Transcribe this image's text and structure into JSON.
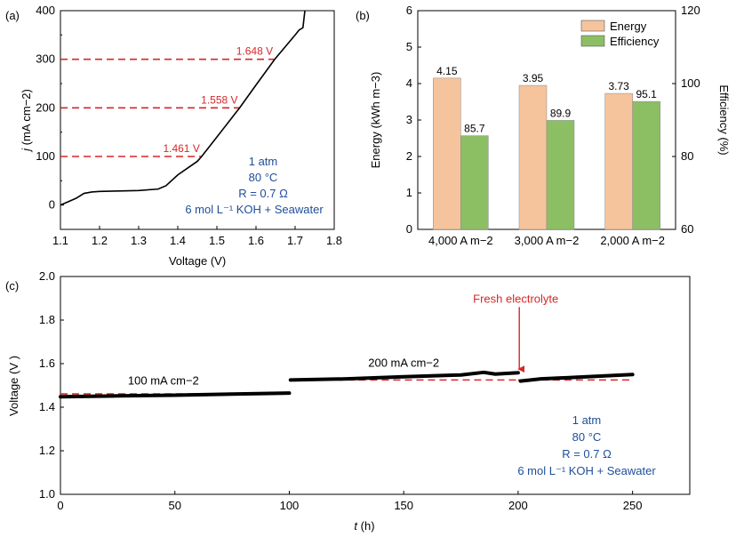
{
  "chart_data": [
    {
      "panel": "(a)",
      "type": "line",
      "xlabel": "Voltage (V)",
      "ylabel_main": "j",
      "ylabel_unit": "(mA cm−2)",
      "xlim": [
        1.1,
        1.8
      ],
      "ylim": [
        -50,
        400
      ],
      "xticks": [
        "1.1",
        "1.2",
        "1.3",
        "1.4",
        "1.5",
        "1.6",
        "1.7",
        "1.8"
      ],
      "yticks": [
        "0",
        "100",
        "200",
        "300",
        "400"
      ],
      "series": [
        {
          "color": "#000000",
          "x": [
            1.1,
            1.12,
            1.14,
            1.16,
            1.18,
            1.2,
            1.25,
            1.3,
            1.35,
            1.37,
            1.4,
            1.45,
            1.461,
            1.5,
            1.558,
            1.6,
            1.648,
            1.7,
            1.71,
            1.72,
            1.725
          ],
          "y": [
            0,
            7,
            14,
            24,
            27,
            28,
            29,
            30,
            33,
            40,
            62,
            90,
            100,
            140,
            200,
            247,
            300,
            350,
            360,
            365,
            400
          ]
        }
      ],
      "reference_lines": [
        {
          "y": 100,
          "x_end": 1.461,
          "label": "1.461 V"
        },
        {
          "y": 200,
          "x_end": 1.558,
          "label": "1.558 V"
        },
        {
          "y": 300,
          "x_end": 1.648,
          "label": "1.648 V"
        }
      ],
      "annotation": [
        "1 atm",
        "80 °C",
        "R = 0.7 Ω",
        "6 mol L⁻¹ KOH + Seawater"
      ]
    },
    {
      "panel": "(b)",
      "type": "bar",
      "categories": [
        "4,000 A m−2",
        "3,000 A m−2",
        "2,000 A m−2"
      ],
      "ylabel": "Energy (kWh m−3)",
      "y2label": "Efficiency (%)",
      "ylim": [
        0,
        6
      ],
      "y2lim": [
        60,
        120
      ],
      "yticks": [
        "0",
        "1",
        "2",
        "3",
        "4",
        "5",
        "6"
      ],
      "y2ticks": [
        "60",
        "80",
        "100",
        "120"
      ],
      "legend_position": "top-right",
      "series": [
        {
          "name": "Energy",
          "axis": "left",
          "color": "#f5c49c",
          "values": [
            4.15,
            3.95,
            3.73
          ],
          "labels": [
            "4.15",
            "3.95",
            "3.73"
          ]
        },
        {
          "name": "Efficiency",
          "axis": "right",
          "color": "#8cbf64",
          "values": [
            85.7,
            89.9,
            95.1
          ],
          "labels": [
            "85.7",
            "89.9",
            "95.1"
          ]
        }
      ]
    },
    {
      "panel": "(c)",
      "type": "line",
      "xlabel": "(h)",
      "xlabel_var": "t",
      "ylabel": "Voltage (V )",
      "xlim": [
        0,
        275
      ],
      "ylim": [
        1.0,
        2.0
      ],
      "xticks": [
        "0",
        "50",
        "100",
        "150",
        "200",
        "250"
      ],
      "yticks": [
        "1.0",
        "1.2",
        "1.4",
        "1.6",
        "1.8",
        "2.0"
      ],
      "series": [
        {
          "color": "#000000",
          "x": [
            0,
            25,
            50,
            75,
            100
          ],
          "y": [
            1.448,
            1.452,
            1.455,
            1.46,
            1.465
          ]
        },
        {
          "color": "#000000",
          "x": [
            100.5,
            125,
            150,
            175,
            185,
            190,
            200
          ],
          "y": [
            1.525,
            1.53,
            1.54,
            1.548,
            1.56,
            1.552,
            1.558
          ]
        },
        {
          "color": "#000000",
          "x": [
            201,
            210,
            225,
            240,
            250
          ],
          "y": [
            1.52,
            1.53,
            1.537,
            1.545,
            1.55
          ]
        }
      ],
      "reference_lines": [
        {
          "x": [
            0,
            100
          ],
          "y": 1.461
        },
        {
          "x": [
            100,
            200
          ],
          "y": 1.525
        },
        {
          "x": [
            200,
            250
          ],
          "y": 1.525
        }
      ],
      "segment_labels": [
        {
          "text": "100 mA cm−2",
          "x": 45,
          "y": 1.505
        },
        {
          "text": "200 mA cm−2",
          "x": 150,
          "y": 1.585
        }
      ],
      "arrow_annotation": {
        "text": "Fresh electrolyte",
        "x": 200.5
      },
      "annotation": [
        "1 atm",
        "80 °C",
        "R = 0.7 Ω",
        "6 mol L⁻¹ KOH + Seawater"
      ]
    }
  ]
}
